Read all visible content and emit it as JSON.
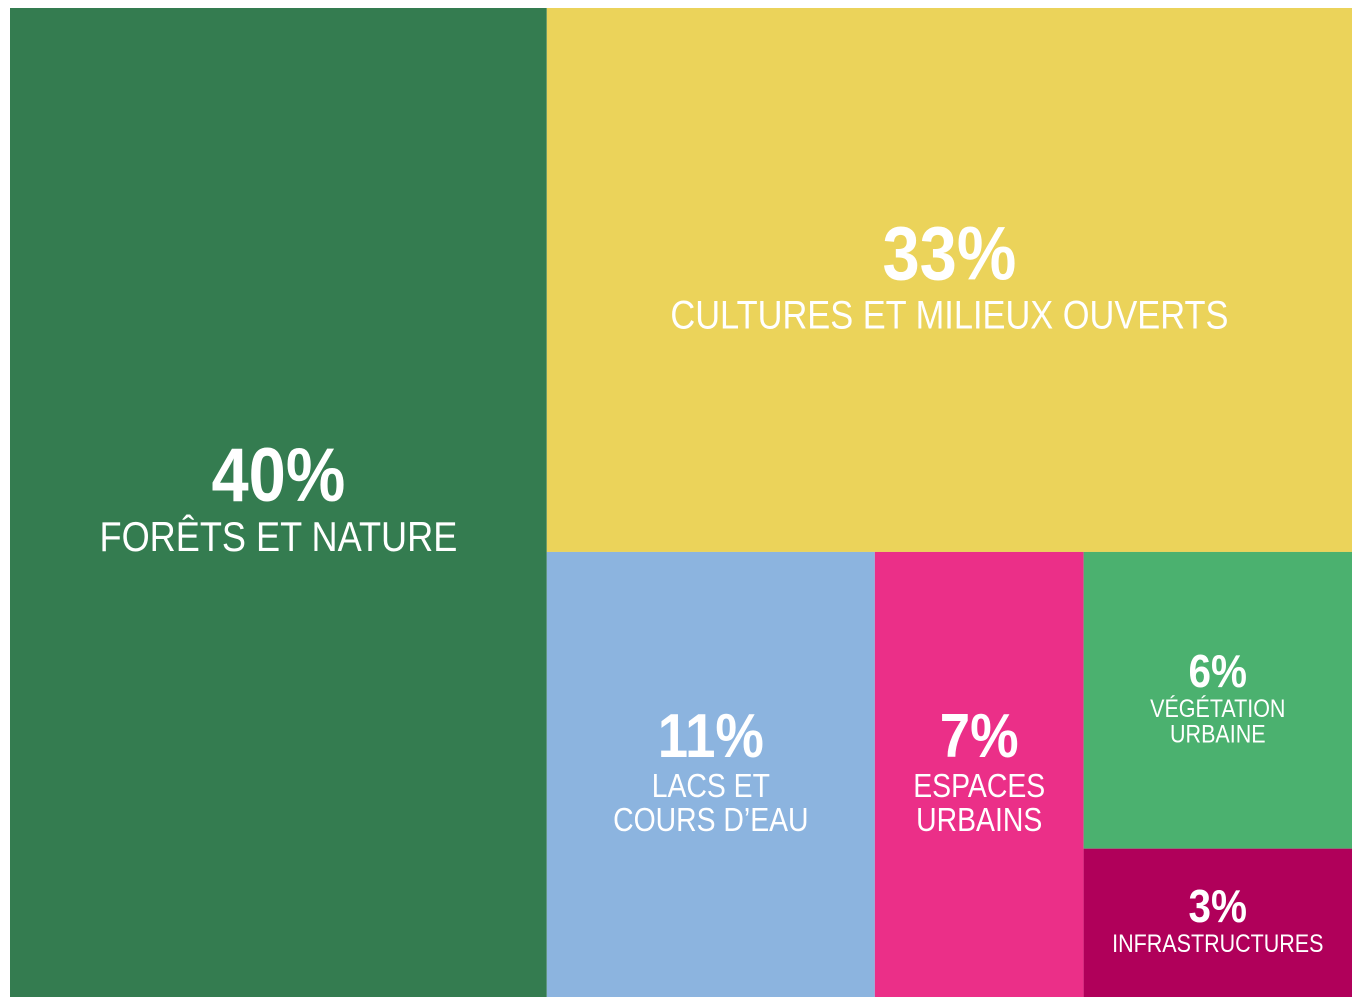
{
  "chart_data": {
    "type": "treemap",
    "categories": [
      "FORÊTS ET NATURE",
      "CULTURES ET MILIEUX OUVERTS",
      "LACS ET\nCOURS D’EAU",
      "ESPACES\nURBAINS",
      "VÉGÉTATION\nURBAINE",
      "INFRASTRUCTURES"
    ],
    "values": [
      40,
      33,
      11,
      7,
      6,
      3
    ],
    "value_labels": [
      "40%",
      "33%",
      "11%",
      "7%",
      "6%",
      "3%"
    ],
    "colors": [
      "#347c50",
      "#ebd35a",
      "#8cb4df",
      "#eb2f88",
      "#4bb16f",
      "#b0005a"
    ]
  }
}
